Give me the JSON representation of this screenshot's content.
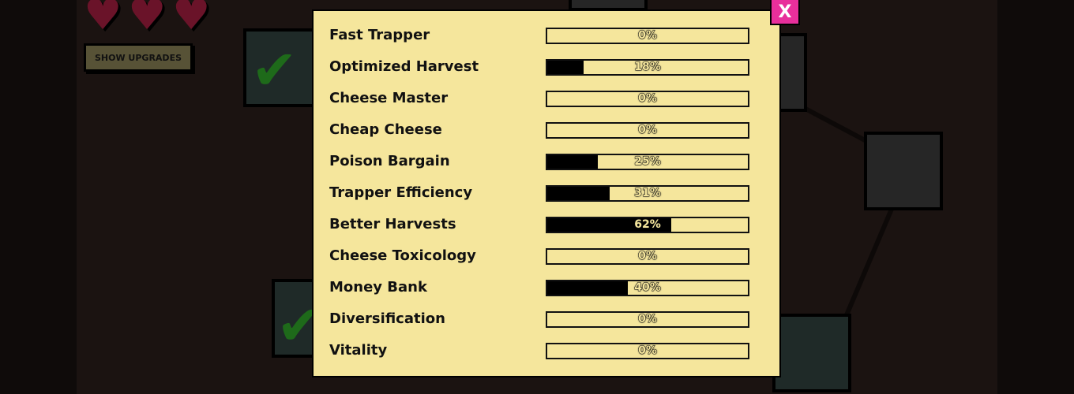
{
  "hud": {
    "hearts": 3,
    "show_upgrades_label": "SHOW UPGRADES"
  },
  "panel": {
    "close_label": "X",
    "accent_color": "#e82f9b",
    "upgrades": [
      {
        "name": "Fast Trapper",
        "progress": 0,
        "label": "0%"
      },
      {
        "name": "Optimized Harvest",
        "progress": 18,
        "label": "18%"
      },
      {
        "name": "Cheese Master",
        "progress": 0,
        "label": "0%"
      },
      {
        "name": "Cheap Cheese",
        "progress": 0,
        "label": "0%"
      },
      {
        "name": "Poison Bargain",
        "progress": 25,
        "label": "25%"
      },
      {
        "name": "Trapper Efficiency",
        "progress": 31,
        "label": "31%"
      },
      {
        "name": "Better Harvests",
        "progress": 62,
        "label": "62%"
      },
      {
        "name": "Cheese Toxicology",
        "progress": 0,
        "label": "0%"
      },
      {
        "name": "Money Bank",
        "progress": 40,
        "label": "40%"
      },
      {
        "name": "Diversification",
        "progress": 0,
        "label": "0%"
      },
      {
        "name": "Vitality",
        "progress": 0,
        "label": "0%"
      }
    ]
  }
}
